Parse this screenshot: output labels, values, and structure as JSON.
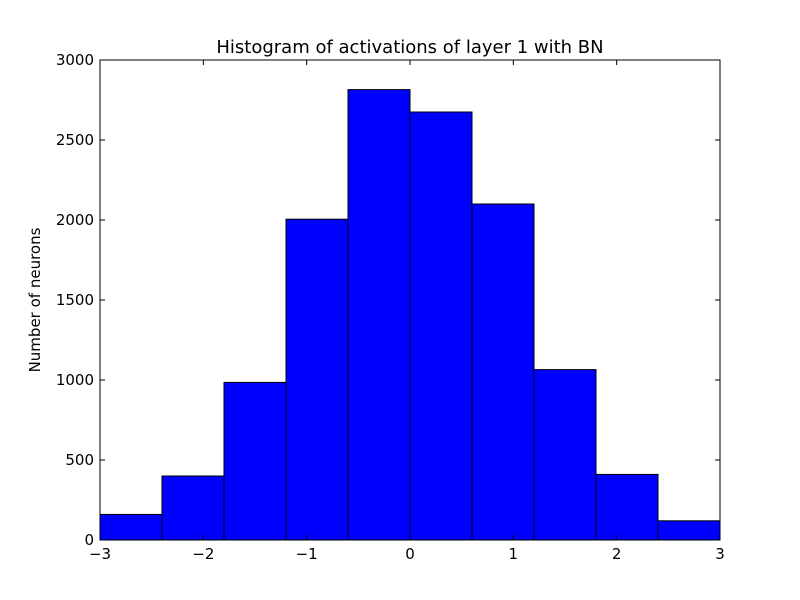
{
  "chart_data": {
    "type": "bar",
    "title": "Histogram of activations of layer 1  with BN",
    "xlabel": "",
    "ylabel": "Number of neurons",
    "bin_edges": [
      -3,
      -2.4,
      -1.8,
      -1.2,
      -0.6,
      0,
      0.6,
      1.2,
      1.8,
      2.4,
      3
    ],
    "values": [
      160,
      400,
      985,
      2005,
      2815,
      2675,
      2100,
      1065,
      410,
      120
    ],
    "xlim": [
      -3,
      3
    ],
    "ylim": [
      0,
      3000
    ],
    "x_ticks": [
      -3,
      -2,
      -1,
      0,
      1,
      2,
      3
    ],
    "x_tick_labels": [
      "−3",
      "−2",
      "−1",
      "0",
      "1",
      "2",
      "3"
    ],
    "y_ticks": [
      0,
      500,
      1000,
      1500,
      2000,
      2500,
      3000
    ],
    "y_tick_labels": [
      "0",
      "500",
      "1000",
      "1500",
      "2000",
      "2500",
      "3000"
    ],
    "bar_color": "#0000ff",
    "edge_color": "#000000",
    "grid": false,
    "legend": false
  }
}
